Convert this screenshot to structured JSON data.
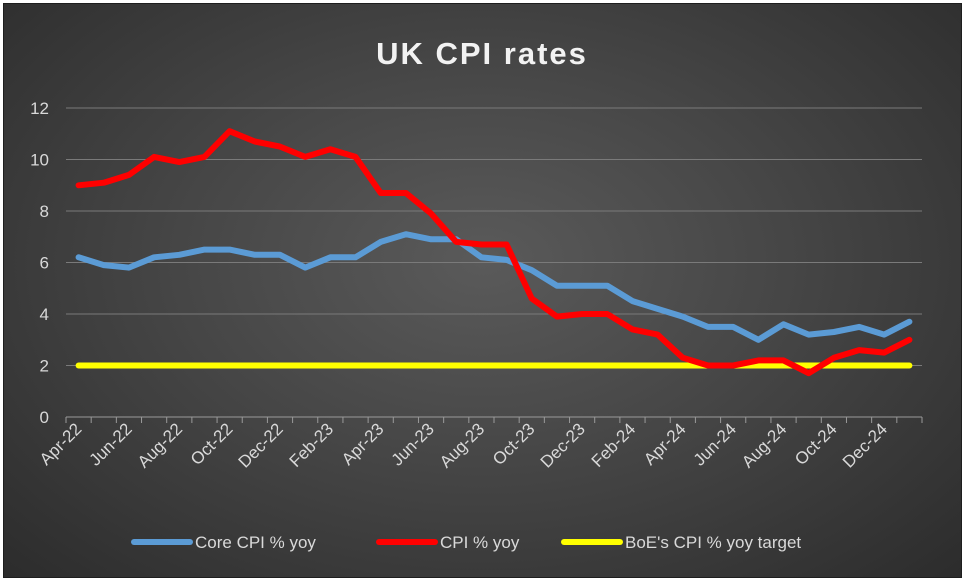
{
  "chart_data": {
    "type": "line",
    "title": "UK CPI rates",
    "xlabel": "",
    "ylabel": "",
    "ylim": [
      0,
      12
    ],
    "yticks": [
      0,
      2,
      4,
      6,
      8,
      10,
      12
    ],
    "grid": true,
    "legend_position": "bottom",
    "x": [
      "Apr-22",
      "May-22",
      "Jun-22",
      "Jul-22",
      "Aug-22",
      "Sep-22",
      "Oct-22",
      "Nov-22",
      "Dec-22",
      "Jan-23",
      "Feb-23",
      "Mar-23",
      "Apr-23",
      "May-23",
      "Jun-23",
      "Jul-23",
      "Aug-23",
      "Sep-23",
      "Oct-23",
      "Nov-23",
      "Dec-23",
      "Jan-24",
      "Feb-24",
      "Mar-24",
      "Apr-24",
      "May-24",
      "Jun-24",
      "Jul-24",
      "Aug-24",
      "Sep-24",
      "Oct-24",
      "Nov-24",
      "Dec-24",
      "Jan-25"
    ],
    "xtick_labels": [
      "Apr-22",
      "Jun-22",
      "Aug-22",
      "Oct-22",
      "Dec-22",
      "Feb-23",
      "Apr-23",
      "Jun-23",
      "Aug-23",
      "Oct-23",
      "Dec-23",
      "Feb-24",
      "Apr-24",
      "Jun-24",
      "Aug-24",
      "Oct-24",
      "Dec-24"
    ],
    "series": [
      {
        "name": "Core CPI % yoy",
        "color": "#5b9bd5",
        "values": [
          6.2,
          5.9,
          5.8,
          6.2,
          6.3,
          6.5,
          6.5,
          6.3,
          6.3,
          5.8,
          6.2,
          6.2,
          6.8,
          7.1,
          6.9,
          6.9,
          6.2,
          6.1,
          5.7,
          5.1,
          5.1,
          5.1,
          4.5,
          4.2,
          3.9,
          3.5,
          3.5,
          3.0,
          3.6,
          3.2,
          3.3,
          3.5,
          3.2,
          3.7
        ]
      },
      {
        "name": "CPI % yoy",
        "color": "#ff0000",
        "values": [
          9.0,
          9.1,
          9.4,
          10.1,
          9.9,
          10.1,
          11.1,
          10.7,
          10.5,
          10.1,
          10.4,
          10.1,
          8.7,
          8.7,
          7.9,
          6.8,
          6.7,
          6.7,
          4.6,
          3.9,
          4.0,
          4.0,
          3.4,
          3.2,
          2.3,
          2.0,
          2.0,
          2.2,
          2.2,
          1.7,
          2.3,
          2.6,
          2.5,
          3.0
        ]
      },
      {
        "name": "BoE's CPI % yoy target",
        "color": "#ffff00",
        "values": [
          2,
          2,
          2,
          2,
          2,
          2,
          2,
          2,
          2,
          2,
          2,
          2,
          2,
          2,
          2,
          2,
          2,
          2,
          2,
          2,
          2,
          2,
          2,
          2,
          2,
          2,
          2,
          2,
          2,
          2,
          2,
          2,
          2,
          2
        ]
      }
    ]
  }
}
